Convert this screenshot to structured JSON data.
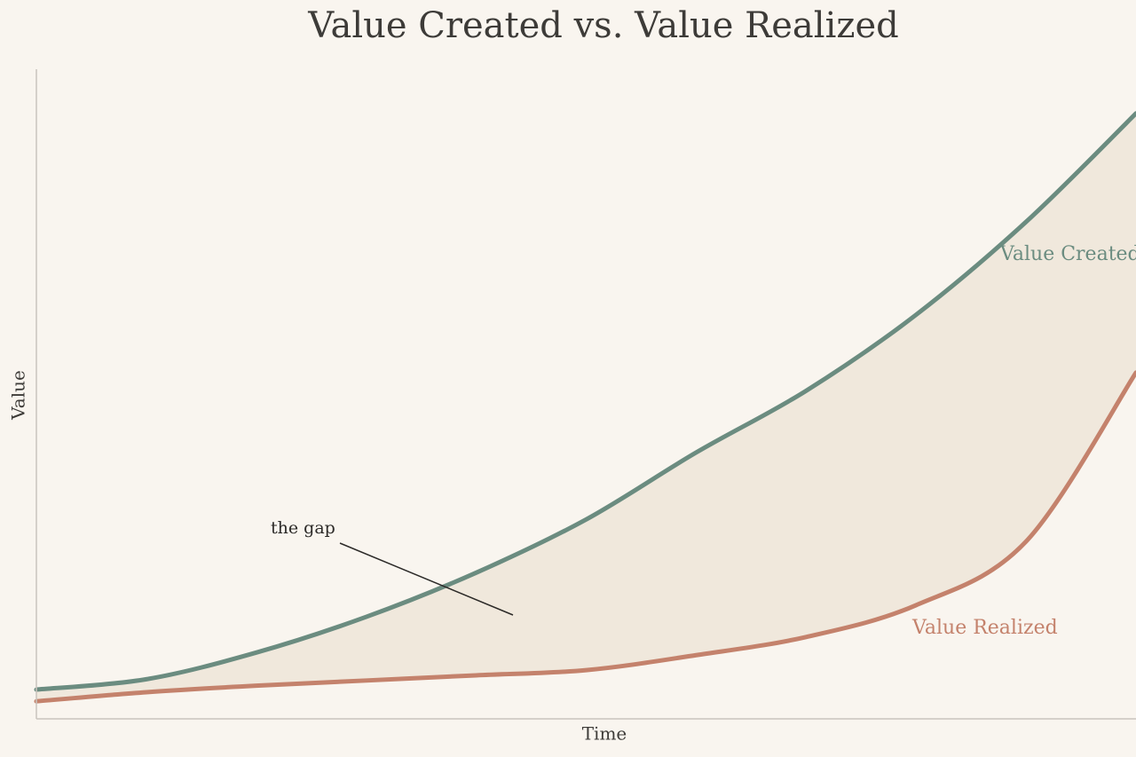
{
  "chart_data": {
    "type": "line",
    "title": "Value Created vs. Value Realized",
    "x_label": "Time",
    "y_label": "Value",
    "annotation": "the gap",
    "x": [
      0,
      1,
      2,
      3,
      4,
      5,
      6,
      7,
      8,
      9,
      10
    ],
    "xlim": [
      0,
      10
    ],
    "ylim": [
      0,
      100
    ],
    "fill_between": "#f0e8dc",
    "series": [
      {
        "name": "Value Created",
        "color": "#6b8c80",
        "values": [
          4.5,
          6.1,
          10.2,
          15.7,
          22.5,
          30.7,
          41.0,
          50.5,
          62.2,
          76.5,
          93.2
        ]
      },
      {
        "name": "Value Realized",
        "color": "#c4826c",
        "values": [
          2.7,
          4.1,
          5.1,
          5.9,
          6.7,
          7.5,
          9.8,
          12.6,
          17.5,
          27.3,
          53.3
        ]
      }
    ]
  }
}
